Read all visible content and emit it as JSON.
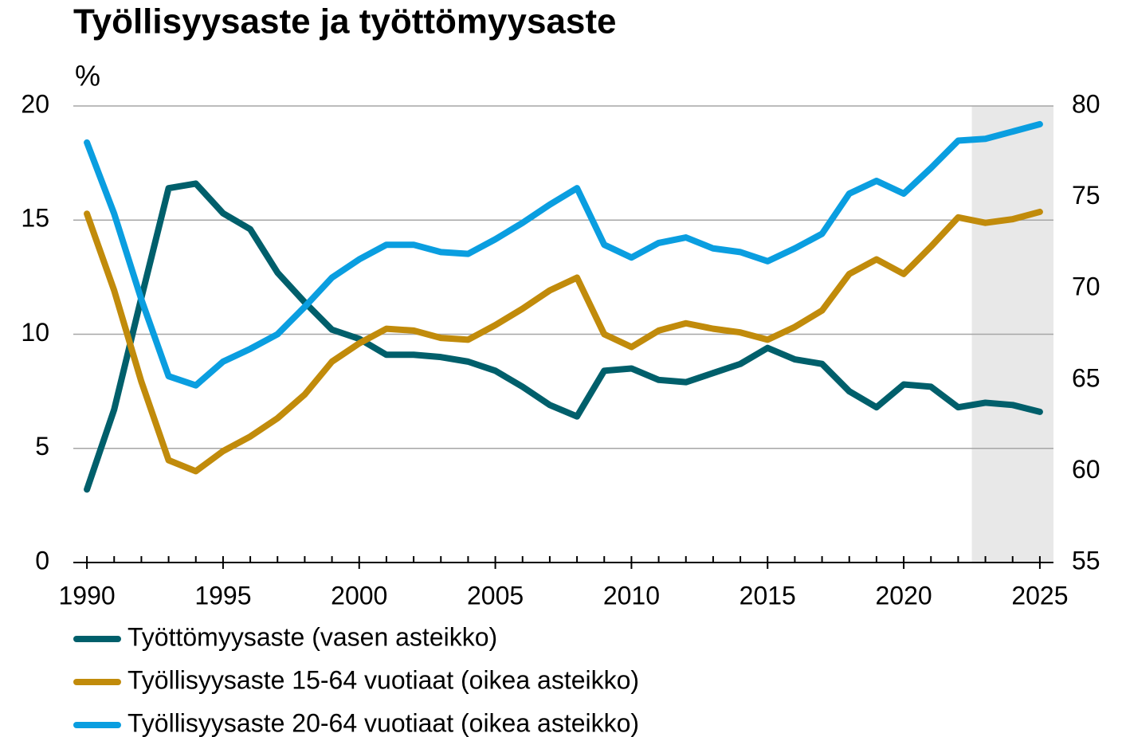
{
  "chart_data": {
    "type": "line",
    "title": "Työllisyysaste ja työttömyysaste",
    "ylabel": "%",
    "x": [
      1990,
      1991,
      1992,
      1993,
      1994,
      1995,
      1996,
      1997,
      1998,
      1999,
      2000,
      2001,
      2002,
      2003,
      2004,
      2005,
      2006,
      2007,
      2008,
      2009,
      2010,
      2011,
      2012,
      2013,
      2014,
      2015,
      2016,
      2017,
      2018,
      2019,
      2020,
      2021,
      2022,
      2023,
      2024,
      2025
    ],
    "xlim": [
      1989.5,
      2025.5
    ],
    "xticks": [
      1990,
      1995,
      2000,
      2005,
      2010,
      2015,
      2020,
      2025
    ],
    "ylim": [
      0,
      20
    ],
    "yticks": [
      0,
      5,
      10,
      15,
      20
    ],
    "y2lim": [
      55,
      80
    ],
    "y2ticks": [
      55,
      60,
      65,
      70,
      75,
      80
    ],
    "grid": true,
    "legend": "bottom",
    "forecast_shade": {
      "xrange": [
        2022.5,
        2025.5
      ],
      "color": "#e8e8e8"
    },
    "series": [
      {
        "name": "Työttömyysaste (vasen asteikko)",
        "color": "#005f6b",
        "axis": "y",
        "values": [
          3.2,
          6.7,
          11.6,
          16.4,
          16.6,
          15.3,
          14.6,
          12.7,
          11.4,
          10.2,
          9.8,
          9.1,
          9.1,
          9.0,
          8.8,
          8.4,
          7.7,
          6.9,
          6.4,
          8.4,
          8.5,
          8.0,
          7.9,
          8.3,
          8.7,
          9.4,
          8.9,
          8.7,
          7.5,
          6.8,
          7.8,
          7.7,
          6.8,
          7.0,
          6.9,
          6.6
        ]
      },
      {
        "name": "Työllisyysaste 15-64 vuotiaat (oikea asteikko)",
        "color": "#c18b0b",
        "axis": "y2",
        "values": [
          74.1,
          69.9,
          64.9,
          60.6,
          60.0,
          61.1,
          61.9,
          62.9,
          64.2,
          66.0,
          67.0,
          67.8,
          67.7,
          67.3,
          67.2,
          68.0,
          68.9,
          69.9,
          70.6,
          67.5,
          66.8,
          67.7,
          68.1,
          67.8,
          67.6,
          67.2,
          67.9,
          68.8,
          70.8,
          71.6,
          70.8,
          72.3,
          73.9,
          73.6,
          73.8,
          74.2
        ]
      },
      {
        "name": "Työllisyysaste 20-64 vuotiaat (oikea asteikko)",
        "color": "#0a9ee0",
        "axis": "y2",
        "values": [
          78.0,
          74.1,
          69.4,
          65.2,
          64.7,
          66.0,
          66.7,
          67.5,
          69.0,
          70.6,
          71.6,
          72.4,
          72.4,
          72.0,
          71.9,
          72.7,
          73.6,
          74.6,
          75.5,
          72.4,
          71.7,
          72.5,
          72.8,
          72.2,
          72.0,
          71.5,
          72.2,
          73.0,
          75.2,
          75.9,
          75.2,
          76.6,
          78.1,
          78.2,
          78.6,
          79.0
        ]
      }
    ]
  }
}
